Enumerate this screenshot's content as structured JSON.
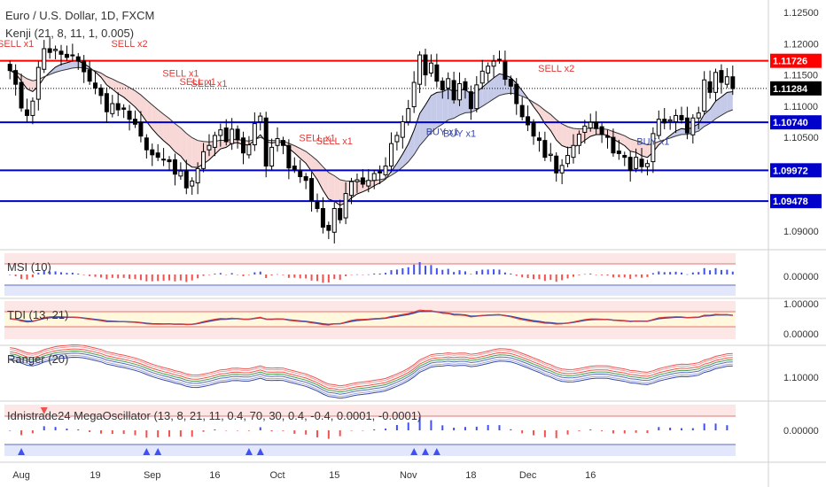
{
  "header": {
    "symbol_title": "Euro / U.S. Dollar, 1D, FXCM",
    "indicator_title": "Kenji (21, 8, 11, 1, 0.005)"
  },
  "colors": {
    "up_candle": "#ffffff",
    "down_candle": "#000000",
    "ema_fast": "#000000",
    "ema_slow": "#333333",
    "cloud_bull": "#c5cae9",
    "cloud_bear": "#f8d7d7",
    "sell_text": "#e53935",
    "buy_text": "#3949ab",
    "resistance_red": "#ff0000",
    "support_blue": "#0000cc",
    "last_price_bg": "#000000",
    "histogram_pos": "#3f51f5",
    "histogram_neg": "#ef5350",
    "tdi_red": "#e53935",
    "tdi_blue": "#3949ab"
  },
  "chart_data": {
    "type": "candlestick",
    "main_pane": {
      "x_axis_labels": [
        "Aug",
        "19",
        "Sep",
        "16",
        "Oct",
        "15",
        "Nov",
        "18",
        "Dec",
        "16"
      ],
      "y_axis_ticks": [
        "1.12500",
        "1.12000",
        "1.11500",
        "1.11000",
        "1.10500",
        "1.10000",
        "1.09500",
        "1.09000"
      ],
      "y_tick_values": [
        1.125,
        1.12,
        1.115,
        1.11,
        1.105,
        1.1,
        1.095,
        1.09
      ],
      "ylim": [
        1.087,
        1.127
      ],
      "price_lines": [
        {
          "value": 1.11726,
          "label": "1.11726",
          "color": "#ff0000"
        },
        {
          "value": 1.11284,
          "label": "1.11284",
          "color": "#000000",
          "style": "dotted"
        },
        {
          "value": 1.1074,
          "label": "1.10740",
          "color": "#0000cc"
        },
        {
          "value": 1.09972,
          "label": "1.09972",
          "color": "#0000cc"
        },
        {
          "value": 1.09478,
          "label": "1.09478",
          "color": "#0000cc"
        }
      ],
      "closes": [
        1.1157,
        1.1135,
        1.1097,
        1.1085,
        1.1108,
        1.1162,
        1.1192,
        1.1186,
        1.1191,
        1.1183,
        1.1178,
        1.1182,
        1.1172,
        1.1155,
        1.114,
        1.1129,
        1.1117,
        1.1091,
        1.1104,
        1.1094,
        1.1095,
        1.1079,
        1.1071,
        1.1052,
        1.103,
        1.1022,
        1.1018,
        1.1014,
        1.1011,
        1.0991,
        1.0996,
        1.0969,
        1.098,
        1.1,
        1.1027,
        1.1037,
        1.1053,
        1.1062,
        1.1043,
        1.1063,
        1.1046,
        1.1025,
        1.1038,
        1.1072,
        1.1084,
        1.1004,
        1.1034,
        1.1048,
        1.1037,
        1.1001,
        1.0999,
        1.0987,
        1.0981,
        1.0949,
        1.0936,
        1.0906,
        1.0901,
        1.0936,
        1.0918,
        1.096,
        1.0979,
        1.0982,
        1.0975,
        1.0981,
        1.0992,
        1.0993,
        1.1004,
        1.104,
        1.1053,
        1.1075,
        1.1096,
        1.1138,
        1.1182,
        1.115,
        1.1169,
        1.114,
        1.1126,
        1.1144,
        1.111,
        1.1136,
        1.1126,
        1.1096,
        1.1134,
        1.1156,
        1.1164,
        1.1172,
        1.1174,
        1.1143,
        1.1132,
        1.1104,
        1.1083,
        1.107,
        1.1052,
        1.1045,
        1.1018,
        1.1023,
        1.0993,
        1.1005,
        1.1021,
        1.1037,
        1.1055,
        1.1068,
        1.1074,
        1.1064,
        1.1055,
        1.105,
        1.1025,
        1.1024,
        1.1018,
        1.0997,
        1.1018,
        1.1003,
        1.1008,
        1.1056,
        1.1079,
        1.1073,
        1.1078,
        1.1085,
        1.1078,
        1.1057,
        1.1081,
        1.1089,
        1.1142,
        1.1122,
        1.1154,
        1.1138,
        1.1147,
        1.1128
      ],
      "signals": [
        {
          "text": "SELL x1",
          "type": "sell",
          "index": 1,
          "price": 1.1195
        },
        {
          "text": "SELL x2",
          "type": "sell",
          "index": 21,
          "price": 1.1195
        },
        {
          "text": "SELL x1",
          "type": "sell",
          "index": 30,
          "price": 1.1147
        },
        {
          "text": "SELL x1",
          "type": "sell",
          "index": 33,
          "price": 1.1134
        },
        {
          "text": "SELL x1",
          "type": "sell",
          "index": 35,
          "price": 1.1131
        },
        {
          "text": "SELL x1",
          "type": "sell",
          "index": 54,
          "price": 1.1044
        },
        {
          "text": "SELL x1",
          "type": "sell",
          "index": 57,
          "price": 1.1039
        },
        {
          "text": "SELL x2",
          "type": "sell",
          "index": 96,
          "price": 1.1155
        },
        {
          "text": "BUY x1",
          "type": "buy",
          "index": 76,
          "price": 1.1054
        },
        {
          "text": "BUY x1",
          "type": "buy",
          "index": 79,
          "price": 1.1051
        },
        {
          "text": "BUY x1",
          "type": "buy",
          "index": 113,
          "price": 1.1038
        }
      ]
    },
    "sub_panes": [
      {
        "title": "MSI (10)",
        "axis_tick": "0.00000",
        "series_type": "histogram"
      },
      {
        "title": "TDI (13, 21)",
        "axis_ticks": [
          "1.00000",
          "0.00000"
        ],
        "series_type": "line"
      },
      {
        "title": "Ranger (20)",
        "axis_tick": "1.10000",
        "series_type": "bands"
      },
      {
        "title": "Idnistrade24 MegaOscillator (13, 8, 21, 11, 0.4, 70, 30, 0.4, -0.4, 0.0001, -0.0001)",
        "axis_tick": "0.00000",
        "series_type": "histogram"
      }
    ]
  }
}
